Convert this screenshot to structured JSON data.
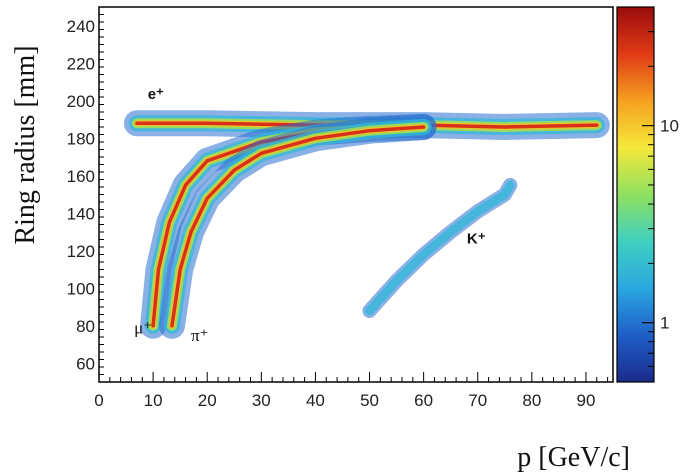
{
  "chart_data": {
    "type": "heatmap",
    "xlabel": "p [GeV/c]",
    "ylabel": "Ring radius [mm]",
    "xlim": [
      0,
      95
    ],
    "ylim": [
      50,
      250
    ],
    "xticks": [
      0,
      10,
      20,
      30,
      40,
      50,
      60,
      70,
      80,
      90
    ],
    "yticks": [
      60,
      80,
      100,
      120,
      140,
      160,
      180,
      200,
      220,
      240
    ],
    "colorbar": {
      "scale": "log",
      "range": [
        0.5,
        40
      ],
      "ticks": [
        {
          "value": 1,
          "label": "1"
        },
        {
          "value": 10,
          "label": "10"
        }
      ],
      "colors": [
        "#1a2a8a",
        "#1f5fc8",
        "#2aa7e0",
        "#3fd0c0",
        "#8fe060",
        "#f5e83a",
        "#f5a020",
        "#e03a16",
        "#9a0c0c"
      ]
    },
    "bands": [
      {
        "label": "e⁺",
        "annotation_at": [
          9,
          201
        ],
        "points": [
          [
            7,
            188
          ],
          [
            20,
            188
          ],
          [
            40,
            187
          ],
          [
            60,
            187
          ],
          [
            75,
            186
          ],
          [
            92,
            187
          ]
        ]
      },
      {
        "label": "μ⁺",
        "annotation_at": [
          6.5,
          76
        ],
        "points": [
          [
            10,
            80
          ],
          [
            11,
            110
          ],
          [
            13,
            135
          ],
          [
            16,
            155
          ],
          [
            20,
            168
          ],
          [
            30,
            178
          ],
          [
            40,
            183
          ],
          [
            50,
            185
          ],
          [
            60,
            186
          ]
        ]
      },
      {
        "label": "π⁺",
        "annotation_at": [
          17,
          72
        ],
        "points": [
          [
            13.5,
            80
          ],
          [
            15,
            110
          ],
          [
            17,
            130
          ],
          [
            20,
            148
          ],
          [
            25,
            163
          ],
          [
            30,
            172
          ],
          [
            40,
            180
          ],
          [
            50,
            184
          ],
          [
            60,
            186
          ]
        ]
      },
      {
        "label": "K⁺",
        "annotation_at": [
          68,
          124
        ],
        "points": [
          [
            50,
            88
          ],
          [
            55,
            104
          ],
          [
            60,
            118
          ],
          [
            65,
            130
          ],
          [
            70,
            141
          ],
          [
            75,
            150
          ],
          [
            76,
            155
          ]
        ]
      }
    ]
  }
}
